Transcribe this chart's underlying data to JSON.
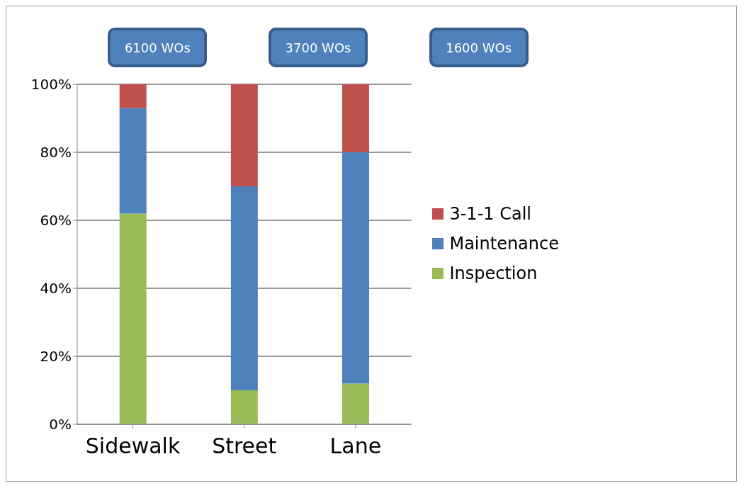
{
  "chart_data": {
    "type": "bar",
    "stacked": true,
    "categories": [
      "Sidewalk",
      "Street",
      "Lane"
    ],
    "series": [
      {
        "name": "Inspection",
        "color": "#9bbb59",
        "values": [
          62,
          10,
          12
        ]
      },
      {
        "name": "Maintenance",
        "color": "#4f81bd",
        "values": [
          31,
          60,
          68
        ]
      },
      {
        "name": "3-1-1 Call",
        "color": "#c0504d",
        "values": [
          7,
          30,
          20
        ]
      }
    ],
    "ylim": [
      0,
      100
    ],
    "yticks": [
      {
        "value": 0,
        "label": "0%"
      },
      {
        "value": 20,
        "label": "20%"
      },
      {
        "value": 40,
        "label": "40%"
      },
      {
        "value": 60,
        "label": "60%"
      },
      {
        "value": 80,
        "label": "80%"
      },
      {
        "value": 100,
        "label": "100%"
      }
    ],
    "grid": "y",
    "legend": "right",
    "annotations": [
      "6100 WOs",
      "3700 WOs",
      "1600 WOs"
    ]
  }
}
